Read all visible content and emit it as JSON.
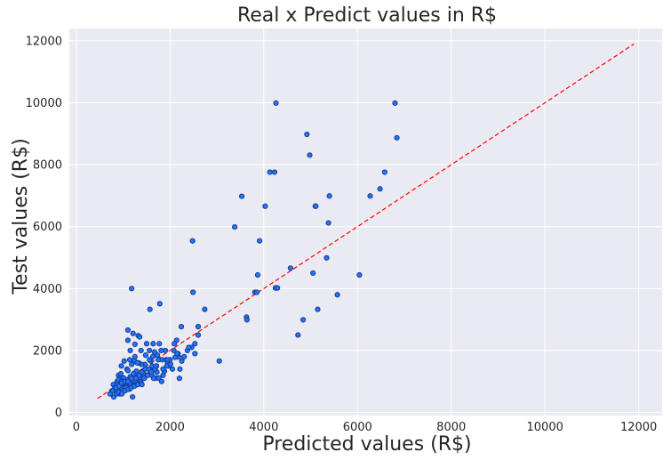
{
  "chart_data": {
    "type": "scatter",
    "title": "Real  x Predict values in R$",
    "xlabel": "Predicted values (R$)",
    "ylabel": "Test values (R$)",
    "xlim": [
      -150,
      12500
    ],
    "ylim": [
      -100,
      12400
    ],
    "xticks": [
      0,
      2000,
      4000,
      6000,
      8000,
      10000,
      12000
    ],
    "yticks": [
      0,
      2000,
      4000,
      6000,
      8000,
      10000,
      12000
    ],
    "grid": true,
    "colors": {
      "background": "#eaeaf2",
      "grid": "#ffffff",
      "point_fill": "#1f77ff",
      "point_edge": "#1a3a8f",
      "reference_line": "#ff0000"
    },
    "reference_line": {
      "x": [
        450,
        11900
      ],
      "y": [
        450,
        11900
      ]
    },
    "points": {
      "x": [
        4260,
        6800,
        4920,
        6840,
        4980,
        4130,
        4230,
        6580,
        3530,
        6480,
        5400,
        6270,
        4030,
        5100,
        5110,
        3380,
        5380,
        3910,
        2480,
        5340,
        4570,
        6040,
        5050,
        3870,
        4250,
        4290,
        3810,
        5570,
        3850,
        4840,
        5150,
        3630,
        3640,
        4730,
        1180,
        2490,
        1780,
        1570,
        2740,
        2240,
        1320,
        1350,
        1210,
        1100,
        2600,
        1100,
        2140,
        2090,
        1640,
        1500,
        2530,
        3050,
        1150,
        1900,
        1770,
        2370,
        2530,
        2180,
        1250,
        1380,
        1560,
        1480,
        1830,
        2250,
        2210,
        1730,
        1810,
        1670,
        1910,
        1950,
        1980,
        2050,
        1710,
        1590,
        1630,
        1460,
        1390,
        1020,
        960,
        900,
        1240,
        1330,
        1140,
        1180,
        1080,
        1280,
        1420,
        1540,
        1610,
        1700,
        1760,
        1820,
        1880,
        1930,
        2010,
        2110,
        2170,
        2300,
        2460,
        1230,
        1300,
        1190,
        1010,
        1060,
        870,
        920,
        980,
        790,
        840,
        1030,
        1090,
        1160,
        1260,
        1360,
        1440,
        1510,
        1580,
        1660,
        1720,
        950,
        1000,
        1120,
        1200,
        1270,
        1340,
        1400,
        1470,
        1550,
        1620,
        1050,
        880,
        820,
        760,
        720,
        780,
        850,
        930,
        990,
        1070,
        1130,
        1210,
        1290,
        1370,
        1450,
        1520,
        1600,
        1680,
        800,
        860,
        910,
        970,
        1040,
        1110,
        1170,
        1240,
        1310,
        1380,
        900,
        960,
        1020,
        1080,
        1150,
        1220,
        850,
        910,
        970,
        1040,
        1100,
        1170,
        1650,
        1750,
        2000,
        2150,
        2400,
        1850,
        2080,
        2600,
        1560,
        1200,
        1100,
        950,
        1300,
        1700,
        1850,
        2200,
        1400,
        1950,
        1250
      ],
      "y": [
        9990,
        9990,
        8980,
        8870,
        8310,
        7760,
        7760,
        7760,
        6980,
        7220,
        6990,
        6990,
        6660,
        6660,
        6660,
        5990,
        6120,
        5540,
        5540,
        4990,
        4660,
        4440,
        4500,
        4440,
        4020,
        4020,
        3880,
        3800,
        3880,
        2990,
        3330,
        3080,
        2990,
        2500,
        4000,
        3880,
        3510,
        3330,
        3330,
        2770,
        2480,
        2440,
        2550,
        2660,
        2770,
        2330,
        2330,
        2220,
        2220,
        2220,
        2220,
        1660,
        2000,
        2000,
        2220,
        2000,
        1900,
        1800,
        2200,
        2000,
        2000,
        1850,
        1700,
        1660,
        1400,
        1850,
        2000,
        1950,
        1700,
        1600,
        1500,
        1400,
        1500,
        1660,
        1800,
        1550,
        1550,
        1660,
        1500,
        1200,
        1660,
        1600,
        1700,
        1550,
        1400,
        1330,
        1330,
        1220,
        1200,
        1110,
        1110,
        1000,
        1330,
        1500,
        1560,
        1780,
        1900,
        1800,
        2100,
        1200,
        1100,
        1000,
        1110,
        1000,
        1000,
        1100,
        1000,
        900,
        800,
        900,
        800,
        900,
        1000,
        1110,
        1220,
        1200,
        1330,
        1440,
        1300,
        800,
        700,
        800,
        1050,
        1100,
        1200,
        1300,
        1400,
        1400,
        1500,
        900,
        900,
        800,
        700,
        600,
        700,
        650,
        600,
        700,
        800,
        750,
        850,
        900,
        1000,
        1100,
        1200,
        1300,
        1400,
        500,
        600,
        650,
        600,
        700,
        750,
        800,
        850,
        900,
        950,
        1050,
        1000,
        950,
        1050,
        1150,
        1250,
        800,
        850,
        950,
        1000,
        1000,
        1100,
        1100,
        1700,
        1700,
        1900,
        2100,
        1200,
        2000,
        2500,
        1700,
        500,
        1350,
        1250,
        1600,
        1500,
        1400,
        1100,
        900,
        1700,
        1800
      ]
    }
  }
}
